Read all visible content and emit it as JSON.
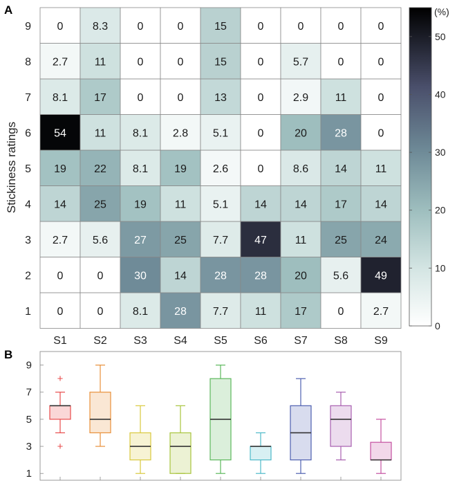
{
  "chart_data": [
    {
      "type": "heatmap",
      "panel_label": "A",
      "x_categories": [
        "S1",
        "S2",
        "S3",
        "S4",
        "S5",
        "S6",
        "S7",
        "S8",
        "S9"
      ],
      "y_categories": [
        "1",
        "2",
        "3",
        "4",
        "5",
        "6",
        "7",
        "8",
        "9"
      ],
      "ylabel": "Stickiness ratings",
      "values_by_rating": {
        "9": [
          "0",
          "8.3",
          "0",
          "0",
          "15",
          "0",
          "0",
          "0",
          "0"
        ],
        "8": [
          "2.7",
          "11",
          "0",
          "0",
          "15",
          "0",
          "5.7",
          "0",
          "0"
        ],
        "7": [
          "8.1",
          "17",
          "0",
          "0",
          "13",
          "0",
          "2.9",
          "11",
          "0"
        ],
        "6": [
          "54",
          "11",
          "8.1",
          "2.8",
          "5.1",
          "0",
          "20",
          "28",
          "0"
        ],
        "5": [
          "19",
          "22",
          "8.1",
          "19",
          "2.6",
          "0",
          "8.6",
          "14",
          "11"
        ],
        "4": [
          "14",
          "25",
          "19",
          "11",
          "5.1",
          "14",
          "14",
          "17",
          "14"
        ],
        "3": [
          "2.7",
          "5.6",
          "27",
          "25",
          "7.7",
          "47",
          "11",
          "25",
          "24"
        ],
        "2": [
          "0",
          "0",
          "30",
          "14",
          "28",
          "28",
          "20",
          "5.6",
          "49"
        ],
        "1": [
          "0",
          "0",
          "8.1",
          "28",
          "7.7",
          "11",
          "17",
          "0",
          "2.7"
        ]
      },
      "colorbar": {
        "label": "(%)",
        "range": [
          0,
          55
        ],
        "ticks": [
          "0",
          "10",
          "20",
          "30",
          "40",
          "50"
        ]
      }
    },
    {
      "type": "box",
      "panel_label": "B",
      "categories": [
        "S1",
        "S2",
        "S3",
        "S4",
        "S5",
        "S6",
        "S7",
        "S8",
        "S9"
      ],
      "ylim": [
        0.5,
        10
      ],
      "yticks": [
        "1",
        "3",
        "5",
        "7",
        "9"
      ],
      "boxes": [
        {
          "name": "S1",
          "whisker_low": 4,
          "q1": 5,
          "median": 6,
          "q3": 6,
          "whisker_high": 7,
          "outliers": [
            3,
            8
          ],
          "color": "#e84b4b"
        },
        {
          "name": "S2",
          "whisker_low": 3,
          "q1": 4,
          "median": 5,
          "q3": 7,
          "whisker_high": 9,
          "outliers": [],
          "color": "#e8903a"
        },
        {
          "name": "S3",
          "whisker_low": 1,
          "q1": 2,
          "median": 3,
          "q3": 4,
          "whisker_high": 6,
          "outliers": [],
          "color": "#d9c93c"
        },
        {
          "name": "S4",
          "whisker_low": 1,
          "q1": 1,
          "median": 3,
          "q3": 4,
          "whisker_high": 6,
          "outliers": [],
          "color": "#a8c43c"
        },
        {
          "name": "S5",
          "whisker_low": 1,
          "q1": 2,
          "median": 5,
          "q3": 8,
          "whisker_high": 9,
          "outliers": [],
          "color": "#5cb85c"
        },
        {
          "name": "S6",
          "whisker_low": 1,
          "q1": 2,
          "median": 3,
          "q3": 3,
          "whisker_high": 4,
          "outliers": [],
          "color": "#4cb9c9"
        },
        {
          "name": "S7",
          "whisker_low": 1,
          "q1": 2,
          "median": 4,
          "q3": 6,
          "whisker_high": 8,
          "outliers": [],
          "color": "#4d5fb0"
        },
        {
          "name": "S8",
          "whisker_low": 2,
          "q1": 3,
          "median": 5,
          "q3": 6,
          "whisker_high": 7,
          "outliers": [],
          "color": "#a85fb0"
        },
        {
          "name": "S9",
          "whisker_low": 1,
          "q1": 2,
          "median": 2,
          "q3": 3.3,
          "whisker_high": 5,
          "outliers": [],
          "color": "#c44fa0"
        }
      ]
    }
  ]
}
